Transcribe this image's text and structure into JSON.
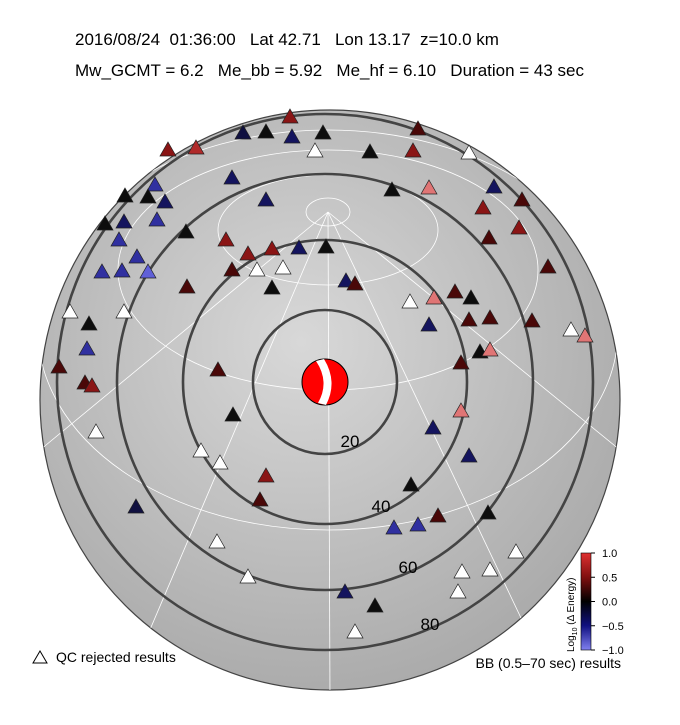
{
  "header": {
    "line1": "2016/08/24  01:36:00   Lat 42.71   Lon 13.17  z=10.0 km",
    "line2": "Mw_GCMT = 6.2   Me_bb = 5.92   Me_hf = 6.10   Duration = 43 sec"
  },
  "distance_labels": [
    "20",
    "40",
    "60",
    "80"
  ],
  "colorbar": {
    "label_main": "Log",
    "label_sub": "10",
    "label_rest": " (Δ Energy)",
    "ticks": [
      "1.0",
      "0.5",
      "0.0",
      "−0.5",
      "−1.0"
    ]
  },
  "legend": {
    "rejected": "QC rejected results",
    "results": "BB (0.5–70 sec) results"
  }
}
